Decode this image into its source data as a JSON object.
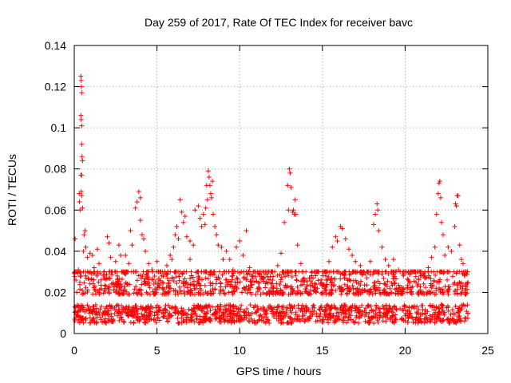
{
  "chart_data": {
    "type": "scatter",
    "title": "Day 259 of 2017, Rate Of TEC Index for receiver bavc",
    "xlabel": "GPS time / hours",
    "ylabel": "ROTI / TECUs",
    "xlim": [
      0,
      25
    ],
    "ylim": [
      0,
      0.14
    ],
    "x_ticks": [
      0,
      5,
      10,
      15,
      20,
      25
    ],
    "y_ticks": [
      0,
      0.02,
      0.04,
      0.06,
      0.08,
      0.1,
      0.12,
      0.14
    ],
    "x_tick_labels": [
      "0",
      "5",
      "10",
      "15",
      "20",
      "25"
    ],
    "y_tick_labels": [
      "0",
      "0.02",
      "0.04",
      "0.06",
      "0.08",
      "0.1",
      "0.12",
      "0.14"
    ],
    "grid": true,
    "marker": "plus",
    "marker_color": "#ff0000",
    "x_data_range": [
      0,
      23.8
    ],
    "background_band": {
      "x": [
        0,
        23.8
      ],
      "ylow": 0.005,
      "yhigh": 0.03,
      "typical": 0.014
    },
    "series": [
      {
        "name": "ROTI",
        "color": "#ff0000",
        "points": [
          [
            0.05,
            0.046
          ],
          [
            0.1,
            0.026
          ],
          [
            0.15,
            0.02
          ],
          [
            0.25,
            0.031
          ],
          [
            0.3,
            0.068
          ],
          [
            0.32,
            0.064
          ],
          [
            0.35,
            0.06
          ],
          [
            0.4,
            0.125
          ],
          [
            0.42,
            0.123
          ],
          [
            0.43,
            0.12
          ],
          [
            0.45,
            0.117
          ],
          [
            0.4,
            0.106
          ],
          [
            0.42,
            0.104
          ],
          [
            0.45,
            0.101
          ],
          [
            0.45,
            0.092
          ],
          [
            0.47,
            0.086
          ],
          [
            0.5,
            0.084
          ],
          [
            0.4,
            0.077
          ],
          [
            0.45,
            0.077
          ],
          [
            0.42,
            0.069
          ],
          [
            0.45,
            0.067
          ],
          [
            0.5,
            0.061
          ],
          [
            0.55,
            0.04
          ],
          [
            0.6,
            0.048
          ],
          [
            0.65,
            0.05
          ],
          [
            0.7,
            0.042
          ],
          [
            0.8,
            0.037
          ],
          [
            0.95,
            0.039
          ],
          [
            1.1,
            0.038
          ],
          [
            1.2,
            0.032
          ],
          [
            1.4,
            0.041
          ],
          [
            1.5,
            0.034
          ],
          [
            1.8,
            0.03
          ],
          [
            2.0,
            0.047
          ],
          [
            2.1,
            0.044
          ],
          [
            2.2,
            0.037
          ],
          [
            2.3,
            0.03
          ],
          [
            2.5,
            0.035
          ],
          [
            2.7,
            0.043
          ],
          [
            2.8,
            0.038
          ],
          [
            3.1,
            0.038
          ],
          [
            3.3,
            0.034
          ],
          [
            3.4,
            0.05
          ],
          [
            3.5,
            0.043
          ],
          [
            3.7,
            0.061
          ],
          [
            3.8,
            0.064
          ],
          [
            3.9,
            0.069
          ],
          [
            4.0,
            0.066
          ],
          [
            4.0,
            0.055
          ],
          [
            4.1,
            0.048
          ],
          [
            4.2,
            0.046
          ],
          [
            4.3,
            0.04
          ],
          [
            4.5,
            0.034
          ],
          [
            4.7,
            0.031
          ],
          [
            5.0,
            0.035
          ],
          [
            5.3,
            0.028
          ],
          [
            5.6,
            0.033
          ],
          [
            5.8,
            0.038
          ],
          [
            5.9,
            0.036
          ],
          [
            6.0,
            0.042
          ],
          [
            6.1,
            0.048
          ],
          [
            6.2,
            0.052
          ],
          [
            6.3,
            0.046
          ],
          [
            6.4,
            0.065
          ],
          [
            6.5,
            0.059
          ],
          [
            6.6,
            0.054
          ],
          [
            6.7,
            0.057
          ],
          [
            6.8,
            0.047
          ],
          [
            7.0,
            0.045
          ],
          [
            7.0,
            0.036
          ],
          [
            7.2,
            0.043
          ],
          [
            7.3,
            0.06
          ],
          [
            7.5,
            0.062
          ],
          [
            7.6,
            0.056
          ],
          [
            7.7,
            0.052
          ],
          [
            7.8,
            0.058
          ],
          [
            7.9,
            0.053
          ],
          [
            7.95,
            0.061
          ],
          [
            8.0,
            0.072
          ],
          [
            8.05,
            0.065
          ],
          [
            8.1,
            0.079
          ],
          [
            8.15,
            0.076
          ],
          [
            8.2,
            0.072
          ],
          [
            8.25,
            0.068
          ],
          [
            8.3,
            0.066
          ],
          [
            8.35,
            0.074
          ],
          [
            8.4,
            0.058
          ],
          [
            8.5,
            0.052
          ],
          [
            8.6,
            0.048
          ],
          [
            8.7,
            0.043
          ],
          [
            8.9,
            0.042
          ],
          [
            9.0,
            0.036
          ],
          [
            9.2,
            0.04
          ],
          [
            9.4,
            0.036
          ],
          [
            9.6,
            0.031
          ],
          [
            9.8,
            0.042
          ],
          [
            10.0,
            0.045
          ],
          [
            10.2,
            0.038
          ],
          [
            10.4,
            0.05
          ],
          [
            10.6,
            0.032
          ],
          [
            10.8,
            0.028
          ],
          [
            11.2,
            0.029
          ],
          [
            11.6,
            0.025
          ],
          [
            12.0,
            0.022
          ],
          [
            12.3,
            0.033
          ],
          [
            12.5,
            0.039
          ],
          [
            12.7,
            0.054
          ],
          [
            12.9,
            0.072
          ],
          [
            12.95,
            0.06
          ],
          [
            13.0,
            0.08
          ],
          [
            13.05,
            0.078
          ],
          [
            13.1,
            0.071
          ],
          [
            13.2,
            0.059
          ],
          [
            13.25,
            0.06
          ],
          [
            13.3,
            0.058
          ],
          [
            13.35,
            0.065
          ],
          [
            13.4,
            0.058
          ],
          [
            13.5,
            0.043
          ],
          [
            13.7,
            0.034
          ],
          [
            14.0,
            0.03
          ],
          [
            14.3,
            0.027
          ],
          [
            14.7,
            0.022
          ],
          [
            15.2,
            0.028
          ],
          [
            15.4,
            0.035
          ],
          [
            15.6,
            0.042
          ],
          [
            15.8,
            0.047
          ],
          [
            15.9,
            0.045
          ],
          [
            16.1,
            0.052
          ],
          [
            16.2,
            0.051
          ],
          [
            16.4,
            0.046
          ],
          [
            16.6,
            0.041
          ],
          [
            16.8,
            0.038
          ],
          [
            17.0,
            0.035
          ],
          [
            17.3,
            0.033
          ],
          [
            17.6,
            0.029
          ],
          [
            17.9,
            0.035
          ],
          [
            18.1,
            0.053
          ],
          [
            18.2,
            0.058
          ],
          [
            18.3,
            0.063
          ],
          [
            18.35,
            0.06
          ],
          [
            18.4,
            0.05
          ],
          [
            18.6,
            0.042
          ],
          [
            18.8,
            0.036
          ],
          [
            19.0,
            0.033
          ],
          [
            19.3,
            0.036
          ],
          [
            19.6,
            0.031
          ],
          [
            19.9,
            0.028
          ],
          [
            20.2,
            0.026
          ],
          [
            20.5,
            0.03
          ],
          [
            20.8,
            0.024
          ],
          [
            21.1,
            0.029
          ],
          [
            21.4,
            0.032
          ],
          [
            21.6,
            0.037
          ],
          [
            21.8,
            0.042
          ],
          [
            21.9,
            0.058
          ],
          [
            22.0,
            0.068
          ],
          [
            22.05,
            0.073
          ],
          [
            22.1,
            0.074
          ],
          [
            22.15,
            0.066
          ],
          [
            22.2,
            0.054
          ],
          [
            22.3,
            0.048
          ],
          [
            22.4,
            0.038
          ],
          [
            22.6,
            0.042
          ],
          [
            22.8,
            0.04
          ],
          [
            23.0,
            0.052
          ],
          [
            23.05,
            0.063
          ],
          [
            23.1,
            0.062
          ],
          [
            23.15,
            0.067
          ],
          [
            23.2,
            0.067
          ],
          [
            23.3,
            0.043
          ],
          [
            23.4,
            0.036
          ],
          [
            23.5,
            0.034
          ],
          [
            23.6,
            0.028
          ],
          [
            23.7,
            0.024
          ]
        ]
      }
    ]
  }
}
